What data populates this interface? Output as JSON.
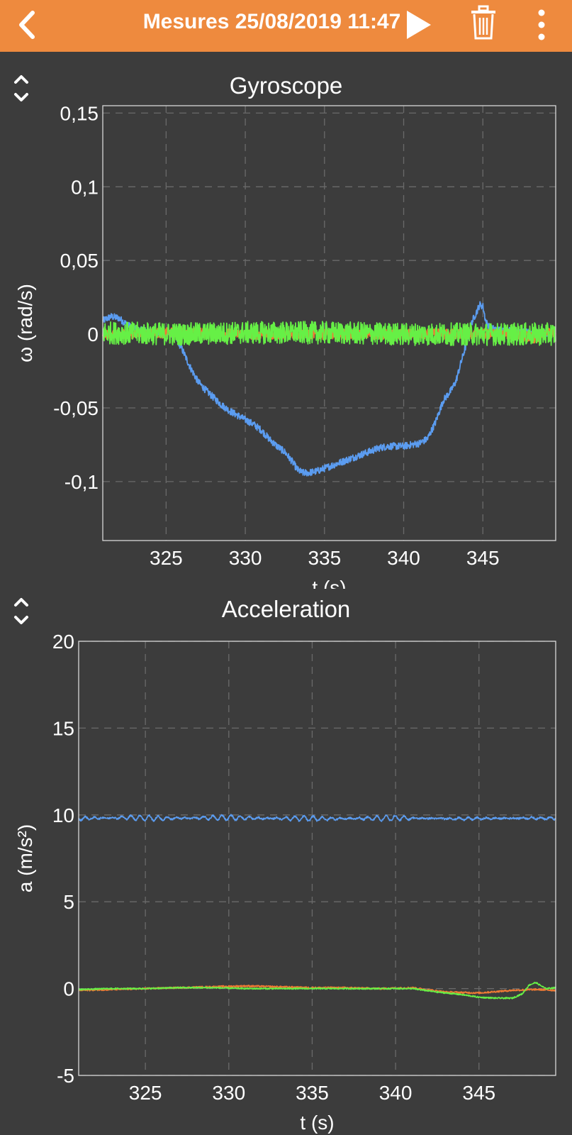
{
  "header": {
    "back_icon": "chevron-left-icon",
    "title": "Mesures 25/08/2019 11:47",
    "play_icon": "play-icon",
    "trash_icon": "trash-icon",
    "more_icon": "more-vertical-icon",
    "background_color": "#ee8a3e"
  },
  "chart_data": [
    {
      "type": "line",
      "title": "Gyroscope",
      "xlabel": "t (s)",
      "ylabel": "ω (rad/s)",
      "xlim": [
        321,
        349.6
      ],
      "ylim": [
        -0.14,
        0.155
      ],
      "xticks": [
        325,
        330,
        335,
        340,
        345
      ],
      "xtick_labels": [
        "325",
        "330",
        "335",
        "340",
        "345"
      ],
      "yticks": [
        0.15,
        0.1,
        0.05,
        0,
        -0.05,
        -0.1
      ],
      "ytick_labels": [
        "0,15",
        "0,1",
        "0,05",
        "0",
        "-0,05",
        "-0,1"
      ],
      "grid": true,
      "legend": "none",
      "series": [
        {
          "color": "#5b9cf0",
          "noise": 0.0015,
          "x": [
            321,
            321.5,
            322,
            322.6,
            323.2,
            324,
            324.8,
            325.5,
            326,
            326.5,
            327,
            327.5,
            328,
            328.5,
            329,
            329.5,
            330,
            330.5,
            331,
            331.5,
            332,
            332.5,
            333,
            333.3,
            333.6,
            334,
            334.5,
            335,
            335.5,
            336,
            336.5,
            337,
            337.5,
            338,
            338.5,
            339,
            339.5,
            340,
            340.5,
            341,
            341.5,
            342,
            342.5,
            343,
            343.3,
            343.6,
            344,
            344.3,
            344.6,
            344.8,
            345,
            345.2,
            345.5,
            346,
            347,
            348,
            349,
            349.6
          ],
          "y": [
            0.009,
            0.012,
            0.011,
            0.006,
            0.003,
            0.002,
            0.001,
            0.0,
            -0.01,
            -0.022,
            -0.032,
            -0.038,
            -0.043,
            -0.048,
            -0.052,
            -0.055,
            -0.058,
            -0.061,
            -0.065,
            -0.071,
            -0.076,
            -0.08,
            -0.087,
            -0.092,
            -0.094,
            -0.094,
            -0.093,
            -0.091,
            -0.089,
            -0.087,
            -0.085,
            -0.083,
            -0.081,
            -0.079,
            -0.077,
            -0.076,
            -0.076,
            -0.076,
            -0.075,
            -0.074,
            -0.071,
            -0.06,
            -0.045,
            -0.038,
            -0.032,
            -0.02,
            -0.005,
            0.008,
            0.015,
            0.02,
            0.019,
            0.008,
            0.004,
            0.003,
            0.002,
            0.001,
            0.001,
            0.0
          ]
        },
        {
          "color": "#ee7a34",
          "noise": 0.0022,
          "x": [
            321,
            326,
            330,
            335,
            340,
            345,
            347,
            348.5,
            349,
            349.6
          ],
          "y": [
            0.0,
            0.001,
            0.0,
            0.0,
            0.0,
            0.0,
            0.0,
            -0.003,
            0.002,
            0.0
          ]
        },
        {
          "color": "#66f046",
          "noise": 0.0048,
          "x": [
            321,
            326,
            330,
            335,
            340,
            345,
            349.6
          ],
          "y": [
            0.001,
            0.0,
            0.001,
            0.001,
            0.0,
            0.0,
            0.0
          ]
        }
      ]
    },
    {
      "type": "line",
      "title": "Acceleration",
      "xlabel": "t (s)",
      "ylabel": "a (m/s²)",
      "xlim": [
        321,
        349.6
      ],
      "ylim": [
        -5,
        20
      ],
      "xticks": [
        325,
        330,
        335,
        340,
        345
      ],
      "xtick_labels": [
        "325",
        "330",
        "335",
        "340",
        "345"
      ],
      "yticks": [
        20,
        15,
        10,
        5,
        0,
        -5
      ],
      "ytick_labels": [
        "20",
        "15",
        "10",
        "5",
        "0",
        "-5"
      ],
      "grid": true,
      "legend": "none",
      "series": [
        {
          "color": "#5b9cf0",
          "noise": 0.05,
          "x": [
            321,
            324,
            326,
            328,
            330,
            332,
            334,
            336,
            338,
            340,
            342,
            344,
            346,
            348,
            349.6
          ],
          "y": [
            9.8,
            9.85,
            9.8,
            9.82,
            9.85,
            9.8,
            9.8,
            9.78,
            9.8,
            9.82,
            9.8,
            9.78,
            9.8,
            9.82,
            9.8
          ],
          "oscillation": 0.15
        },
        {
          "color": "#ee7a34",
          "noise": 0.05,
          "x": [
            321,
            323,
            325,
            327,
            329,
            331,
            333,
            335,
            337,
            339,
            341,
            343,
            345,
            347,
            348.5,
            349.6
          ],
          "y": [
            -0.1,
            -0.05,
            0.0,
            0.05,
            0.1,
            0.15,
            0.1,
            0.05,
            0.05,
            0.0,
            0.05,
            -0.2,
            -0.25,
            -0.1,
            -0.05,
            -0.1
          ]
        },
        {
          "color": "#66f046",
          "noise": 0.04,
          "x": [
            321,
            323,
            325,
            327,
            329,
            331,
            333,
            335,
            337,
            339,
            341,
            342.5,
            344,
            345,
            346,
            347,
            347.6,
            348,
            348.4,
            349,
            349.6
          ],
          "y": [
            -0.05,
            0.0,
            0.0,
            0.05,
            0.05,
            0.0,
            0.0,
            0.0,
            0.0,
            0.0,
            0.0,
            -0.2,
            -0.35,
            -0.5,
            -0.55,
            -0.55,
            -0.3,
            0.2,
            0.35,
            0.0,
            0.05
          ]
        }
      ]
    }
  ]
}
